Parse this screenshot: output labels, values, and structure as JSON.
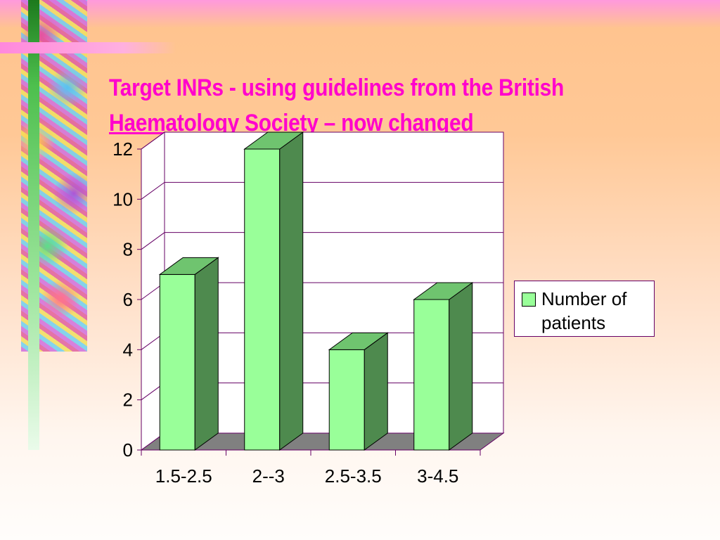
{
  "slide": {
    "title_line1": "Target INRs - using guidelines from the British",
    "title_line2": "Haematology Society – now changed"
  },
  "chart_data": {
    "type": "bar",
    "style": "3d",
    "categories": [
      "1.5-2.5",
      "2--3",
      "2.5-3.5",
      "3-4.5"
    ],
    "series": [
      {
        "name": "Number of patients",
        "values": [
          7,
          12,
          4,
          6
        ]
      }
    ],
    "ylim": [
      0,
      12
    ],
    "y_ticks": [
      0,
      2,
      4,
      6,
      8,
      10,
      12
    ],
    "grid": true,
    "legend": "right",
    "colors": {
      "bar_front": "#99ff99",
      "bar_side": "#4e8a4e",
      "bar_top": "#6fc46f",
      "floor": "#808080",
      "walls": "#ffffff",
      "grid": "#660066"
    }
  }
}
